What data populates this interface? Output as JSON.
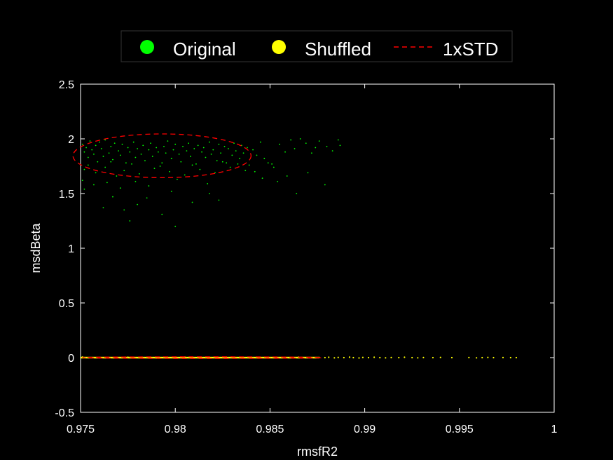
{
  "chart_data": {
    "type": "scatter",
    "xlabel": "rmsfR2",
    "ylabel": "msdBeta",
    "xlim": [
      0.975,
      1
    ],
    "ylim": [
      -0.5,
      2.5
    ],
    "x_ticks": [
      "0.975",
      "0.98",
      "0.985",
      "0.99",
      "0.995",
      "1"
    ],
    "y_ticks": [
      "-0.5",
      "0",
      "0.5",
      "1",
      "1.5",
      "2",
      "2.5"
    ],
    "x_tick_values": [
      0.975,
      0.98,
      0.985,
      0.99,
      0.995,
      1
    ],
    "y_tick_values": [
      -0.5,
      0,
      0.5,
      1,
      1.5,
      2,
      2.5
    ],
    "grid": false,
    "background": "#000000",
    "axis_color": "#ffffff",
    "legend": {
      "placement": "top-center",
      "entries": [
        {
          "label": "Original",
          "marker": "dot",
          "color": "#00ff00"
        },
        {
          "label": "Shuffled",
          "marker": "dot",
          "color": "#ffff00"
        },
        {
          "label": "1xSTD",
          "marker": "dashed-line",
          "color": "#ff0000"
        }
      ]
    },
    "series": [
      {
        "name": "Original",
        "color": "#00ff00",
        "points": [
          [
            0.9751,
            1.95
          ],
          [
            0.9752,
            1.88
          ],
          [
            0.9753,
            1.92
          ],
          [
            0.9754,
            1.83
          ],
          [
            0.9755,
            1.98
          ],
          [
            0.9756,
            1.9
          ],
          [
            0.9757,
            1.86
          ],
          [
            0.9758,
            1.94
          ],
          [
            0.9759,
            1.79
          ],
          [
            0.976,
            1.97
          ],
          [
            0.9761,
            1.91
          ],
          [
            0.9762,
            1.84
          ],
          [
            0.9763,
            1.99
          ],
          [
            0.9765,
            1.87
          ],
          [
            0.9766,
            1.93
          ],
          [
            0.9767,
            1.81
          ],
          [
            0.9768,
            1.96
          ],
          [
            0.977,
            1.89
          ],
          [
            0.9771,
            1.85
          ],
          [
            0.9772,
            1.95
          ],
          [
            0.9774,
            1.78
          ],
          [
            0.9775,
            1.92
          ],
          [
            0.9776,
            1.88
          ],
          [
            0.9778,
            1.97
          ],
          [
            0.9779,
            1.83
          ],
          [
            0.978,
            1.91
          ],
          [
            0.9782,
            1.86
          ],
          [
            0.9783,
            1.94
          ],
          [
            0.9784,
            1.8
          ],
          [
            0.9786,
            1.9
          ],
          [
            0.9787,
            1.96
          ],
          [
            0.9788,
            1.84
          ],
          [
            0.979,
            1.92
          ],
          [
            0.9791,
            1.88
          ],
          [
            0.9792,
            1.75
          ],
          [
            0.9794,
            1.93
          ],
          [
            0.9795,
            1.87
          ],
          [
            0.9796,
            1.98
          ],
          [
            0.9798,
            1.82
          ],
          [
            0.9799,
            1.9
          ],
          [
            0.98,
            1.95
          ],
          [
            0.9802,
            1.86
          ],
          [
            0.9803,
            1.79
          ],
          [
            0.9804,
            1.93
          ],
          [
            0.9806,
            1.89
          ],
          [
            0.9807,
            1.96
          ],
          [
            0.9808,
            1.84
          ],
          [
            0.981,
            1.91
          ],
          [
            0.9811,
            1.77
          ],
          [
            0.9812,
            1.94
          ],
          [
            0.9814,
            1.88
          ],
          [
            0.9815,
            1.92
          ],
          [
            0.9816,
            1.83
          ],
          [
            0.9818,
            1.97
          ],
          [
            0.9819,
            1.86
          ],
          [
            0.982,
            1.9
          ],
          [
            0.9822,
            1.8
          ],
          [
            0.9823,
            1.95
          ],
          [
            0.9824,
            1.87
          ],
          [
            0.9826,
            1.93
          ],
          [
            0.9827,
            1.78
          ],
          [
            0.9828,
            1.91
          ],
          [
            0.983,
            1.85
          ],
          [
            0.9831,
            1.96
          ],
          [
            0.9832,
            1.89
          ],
          [
            0.9834,
            1.82
          ],
          [
            0.9835,
            1.94
          ],
          [
            0.9836,
            1.87
          ],
          [
            0.9838,
            1.92
          ],
          [
            0.9839,
            1.76
          ],
          [
            0.9752,
            1.72
          ],
          [
            0.9758,
            1.69
          ],
          [
            0.9763,
            1.74
          ],
          [
            0.9769,
            1.66
          ],
          [
            0.9773,
            1.71
          ],
          [
            0.9781,
            1.68
          ],
          [
            0.9789,
            1.73
          ],
          [
            0.9797,
            1.7
          ],
          [
            0.9805,
            1.67
          ],
          [
            0.9813,
            1.72
          ],
          [
            0.9821,
            1.69
          ],
          [
            0.9829,
            1.74
          ],
          [
            0.9837,
            1.71
          ],
          [
            0.9754,
            1.76
          ],
          [
            0.9766,
            1.79
          ],
          [
            0.9777,
            1.77
          ],
          [
            0.9793,
            1.78
          ],
          [
            0.9809,
            1.76
          ],
          [
            0.9825,
            1.79
          ],
          [
            0.9833,
            1.77
          ],
          [
            0.9751,
            1.62
          ],
          [
            0.9757,
            1.58
          ],
          [
            0.9764,
            1.6
          ],
          [
            0.9771,
            1.55
          ],
          [
            0.9779,
            1.61
          ],
          [
            0.9786,
            1.57
          ],
          [
            0.9801,
            1.63
          ],
          [
            0.9817,
            1.59
          ],
          [
            0.9752,
            1.54
          ],
          [
            0.9762,
            1.37
          ],
          [
            0.9767,
            1.47
          ],
          [
            0.9773,
            1.35
          ],
          [
            0.978,
            1.4
          ],
          [
            0.9785,
            1.46
          ],
          [
            0.9793,
            1.31
          ],
          [
            0.9798,
            1.52
          ],
          [
            0.9809,
            1.42
          ],
          [
            0.9818,
            1.5
          ],
          [
            0.9823,
            1.44
          ],
          [
            0.9776,
            1.25
          ],
          [
            0.98,
            1.2
          ],
          [
            0.9841,
            1.9
          ],
          [
            0.9843,
            1.85
          ],
          [
            0.9845,
            1.97
          ],
          [
            0.9847,
            1.82
          ],
          [
            0.9849,
            1.78
          ],
          [
            0.9852,
            1.74
          ],
          [
            0.9855,
            1.95
          ],
          [
            0.9858,
            1.88
          ],
          [
            0.9861,
            1.99
          ],
          [
            0.9863,
            1.91
          ],
          [
            0.9866,
            2.0
          ],
          [
            0.9869,
            1.96
          ],
          [
            0.9872,
            1.87
          ],
          [
            0.9876,
            1.98
          ],
          [
            0.988,
            1.93
          ],
          [
            0.9883,
            1.89
          ],
          [
            0.9886,
            1.99
          ],
          [
            0.9887,
            1.94
          ],
          [
            0.9879,
            1.58
          ],
          [
            0.9864,
            1.5
          ],
          [
            0.9859,
            1.66
          ],
          [
            0.9854,
            1.61
          ],
          [
            0.9846,
            1.64
          ],
          [
            0.987,
            1.69
          ],
          [
            0.9842,
            1.7
          ],
          [
            0.9851,
            1.77
          ],
          [
            0.9874,
            1.92
          ]
        ]
      },
      {
        "name": "Shuffled",
        "color": "#ffff00",
        "points": [
          [
            0.9751,
            0.005
          ],
          [
            0.976,
            0.0
          ],
          [
            0.9775,
            0.003
          ],
          [
            0.979,
            -0.002
          ],
          [
            0.9805,
            0.004
          ],
          [
            0.982,
            0.0
          ],
          [
            0.9835,
            0.002
          ],
          [
            0.985,
            -0.003
          ],
          [
            0.9865,
            0.004
          ],
          [
            0.9876,
            0.001
          ],
          [
            0.9879,
            0.0
          ],
          [
            0.9881,
            0.003
          ],
          [
            0.9884,
            -0.002
          ],
          [
            0.9886,
            0.002
          ],
          [
            0.9889,
            0.0
          ],
          [
            0.9892,
            0.004
          ],
          [
            0.9894,
            0.0
          ],
          [
            0.9897,
            -0.003
          ],
          [
            0.9899,
            0.002
          ],
          [
            0.9902,
            0.0
          ],
          [
            0.9905,
            0.003
          ],
          [
            0.9908,
            0.0
          ],
          [
            0.9911,
            -0.002
          ],
          [
            0.9914,
            0.001
          ],
          [
            0.9918,
            0.0
          ],
          [
            0.9921,
            0.003
          ],
          [
            0.9925,
            0.0
          ],
          [
            0.9928,
            -0.002
          ],
          [
            0.9931,
            0.001
          ],
          [
            0.9936,
            0.0
          ],
          [
            0.994,
            0.002
          ],
          [
            0.9946,
            0.0
          ],
          [
            0.9955,
            0.001
          ],
          [
            0.9959,
            -0.002
          ],
          [
            0.9962,
            0.0
          ],
          [
            0.9965,
            0.002
          ],
          [
            0.9968,
            0.0
          ],
          [
            0.9973,
            0.001
          ],
          [
            0.9977,
            0.0
          ],
          [
            0.998,
            0.0
          ]
        ]
      }
    ],
    "std_ellipse": {
      "label": "1xSTD",
      "color": "#ff0000",
      "center": [
        0.9793,
        1.845
      ],
      "radius": [
        0.0047,
        0.2
      ]
    },
    "shuffled_std_ellipse": {
      "color": "#ff0000",
      "center": [
        0.9814,
        0.0
      ],
      "radius": [
        0.0063,
        0.003
      ]
    }
  }
}
